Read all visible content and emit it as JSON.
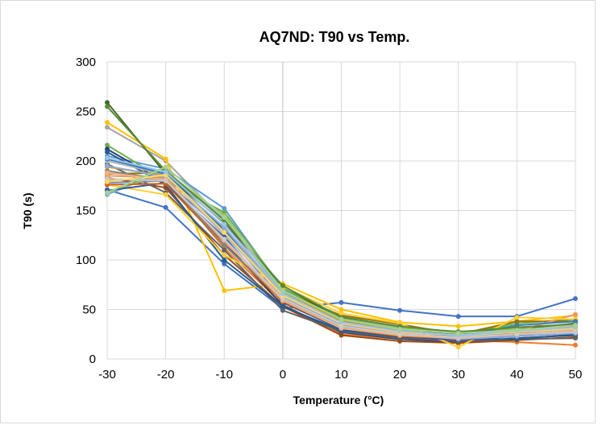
{
  "chart_data": {
    "type": "line",
    "title": "AQ7ND: T90 vs Temp.",
    "xlabel": "Temperature (°C)",
    "ylabel": "T90 (s)",
    "x": [
      -30,
      -20,
      -10,
      0,
      10,
      20,
      30,
      40,
      50
    ],
    "xlim": [
      -30,
      50
    ],
    "ylim": [
      0,
      300
    ],
    "x_ticks": [
      "-30",
      "-20",
      "-10",
      "0",
      "10",
      "20",
      "30",
      "40",
      "50"
    ],
    "y_ticks": [
      "0",
      "50",
      "100",
      "150",
      "200",
      "250",
      "300"
    ],
    "grid": true,
    "legend": "none",
    "series": [
      {
        "color": "#4472C4",
        "values": [
          171,
          153,
          96,
          51,
          57,
          49,
          43,
          43,
          61
        ]
      },
      {
        "color": "#ED7D31",
        "values": [
          180,
          182,
          112,
          55,
          25,
          20,
          19,
          17,
          14
        ]
      },
      {
        "color": "#A5A5A5",
        "values": [
          234,
          200,
          140,
          62,
          35,
          27,
          22,
          26,
          30
        ]
      },
      {
        "color": "#FFC000",
        "values": [
          239,
          202,
          69,
          76,
          50,
          37,
          33,
          38,
          44
        ]
      },
      {
        "color": "#5B9BD5",
        "values": [
          205,
          192,
          152,
          70,
          43,
          32,
          27,
          30,
          33
        ]
      },
      {
        "color": "#70AD47",
        "values": [
          216,
          180,
          148,
          72,
          40,
          30,
          24,
          36,
          40
        ]
      },
      {
        "color": "#264478",
        "values": [
          212,
          178,
          118,
          54,
          27,
          20,
          17,
          21,
          24
        ]
      },
      {
        "color": "#9E480E",
        "values": [
          183,
          173,
          105,
          53,
          24,
          18,
          16,
          19,
          22
        ]
      },
      {
        "color": "#636363",
        "values": [
          197,
          168,
          110,
          49,
          28,
          21,
          18,
          20,
          21
        ]
      },
      {
        "color": "#997300",
        "values": [
          187,
          188,
          130,
          68,
          44,
          35,
          25,
          38,
          38
        ]
      },
      {
        "color": "#255E91",
        "values": [
          209,
          176,
          100,
          53,
          29,
          22,
          20,
          20,
          25
        ]
      },
      {
        "color": "#43682B",
        "values": [
          259,
          187,
          137,
          74,
          40,
          30,
          25,
          30,
          36
        ]
      },
      {
        "color": "#698ED0",
        "values": [
          178,
          180,
          128,
          60,
          32,
          25,
          22,
          24,
          28
        ]
      },
      {
        "color": "#F1975A",
        "values": [
          185,
          183,
          118,
          63,
          34,
          26,
          23,
          28,
          45
        ]
      },
      {
        "color": "#B7B7B7",
        "values": [
          200,
          186,
          125,
          65,
          36,
          28,
          24,
          27,
          30
        ]
      },
      {
        "color": "#FFCD33",
        "values": [
          176,
          166,
          105,
          73,
          46,
          36,
          12,
          42,
          40
        ]
      },
      {
        "color": "#7CAFDD",
        "values": [
          166,
          190,
          142,
          67,
          38,
          29,
          23,
          25,
          28
        ]
      },
      {
        "color": "#8CC168",
        "values": [
          168,
          188,
          145,
          68,
          41,
          31,
          28,
          30,
          32
        ]
      },
      {
        "color": "#335AA1",
        "values": [
          170,
          178,
          123,
          57,
          30,
          23,
          19,
          23,
          26
        ]
      },
      {
        "color": "#D26012",
        "values": [
          176,
          177,
          115,
          58,
          31,
          23,
          21,
          26,
          33
        ]
      },
      {
        "color": "#848484",
        "values": [
          190,
          181,
          115,
          60,
          33,
          25,
          21,
          24,
          27
        ]
      },
      {
        "color": "#CC9A00",
        "values": [
          194,
          185,
          132,
          66,
          39,
          30,
          26,
          29,
          31
        ]
      },
      {
        "color": "#327DC2",
        "values": [
          202,
          187,
          130,
          64,
          37,
          28,
          23,
          34,
          38
        ]
      },
      {
        "color": "#5A8A39",
        "values": [
          255,
          190,
          140,
          74,
          42,
          33,
          27,
          32,
          35
        ]
      },
      {
        "color": "#8FAADC",
        "values": [
          195,
          184,
          133,
          63,
          34,
          25,
          20,
          23,
          26
        ]
      },
      {
        "color": "#F4B183",
        "values": [
          188,
          181,
          120,
          59,
          31,
          24,
          21,
          25,
          29
        ]
      },
      {
        "color": "#C9C9C9",
        "values": [
          182,
          180,
          121,
          61,
          33,
          25,
          22,
          25,
          27
        ]
      },
      {
        "color": "#FFD966",
        "values": [
          179,
          186,
          128,
          64,
          36,
          27,
          24,
          27,
          31
        ]
      },
      {
        "color": "#9DC3E6",
        "values": [
          203,
          189,
          136,
          66,
          37,
          28,
          24,
          28,
          32
        ]
      },
      {
        "color": "#A9D18E",
        "values": [
          168,
          194,
          143,
          69,
          40,
          30,
          26,
          29,
          34
        ]
      }
    ]
  }
}
